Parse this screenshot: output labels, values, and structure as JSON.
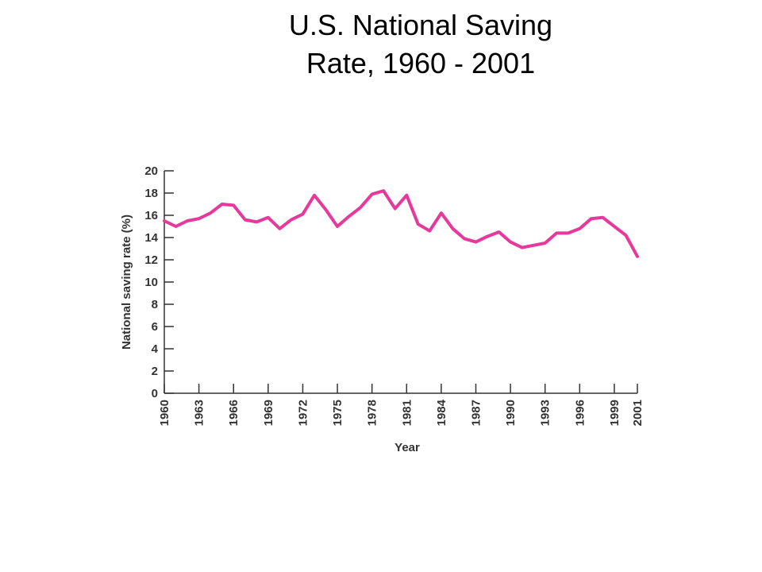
{
  "slide": {
    "title_line1": "U.S. National Saving",
    "title_line2": "Rate, 1960 - 2001"
  },
  "chart_data": {
    "type": "line",
    "title": "U.S. National Saving Rate, 1960 - 2001",
    "xlabel": "Year",
    "ylabel": "National saving rate (%)",
    "xlim": [
      1960,
      2001
    ],
    "ylim": [
      0,
      20
    ],
    "y_ticks": [
      0,
      2,
      4,
      6,
      8,
      10,
      12,
      14,
      16,
      18,
      20
    ],
    "x_ticks": [
      1960,
      1963,
      1966,
      1969,
      1972,
      1975,
      1978,
      1981,
      1984,
      1987,
      1990,
      1993,
      1996,
      1999,
      2001
    ],
    "grid": false,
    "legend": "none",
    "line_color": "#e6399b",
    "series": [
      {
        "x": [
          1960,
          1961,
          1962,
          1963,
          1964,
          1965,
          1966,
          1967,
          1968,
          1969,
          1970,
          1971,
          1972,
          1973,
          1974,
          1975,
          1976,
          1977,
          1978,
          1979,
          1980,
          1981,
          1982,
          1983,
          1984,
          1985,
          1986,
          1987,
          1988,
          1989,
          1990,
          1991,
          1992,
          1993,
          1994,
          1995,
          1996,
          1997,
          1998,
          1999,
          2000,
          2001
        ],
        "values": [
          15.5,
          15.0,
          15.5,
          15.7,
          16.2,
          17.0,
          16.9,
          15.6,
          15.4,
          15.8,
          14.8,
          15.6,
          16.1,
          17.8,
          16.5,
          15.0,
          15.9,
          16.7,
          17.9,
          18.2,
          16.6,
          17.8,
          15.2,
          14.6,
          16.2,
          14.8,
          13.9,
          13.6,
          14.1,
          14.5,
          13.6,
          13.1,
          13.3,
          13.5,
          14.4,
          14.4,
          14.8,
          15.7,
          15.8,
          15.0,
          14.2,
          12.3
        ]
      }
    ]
  }
}
